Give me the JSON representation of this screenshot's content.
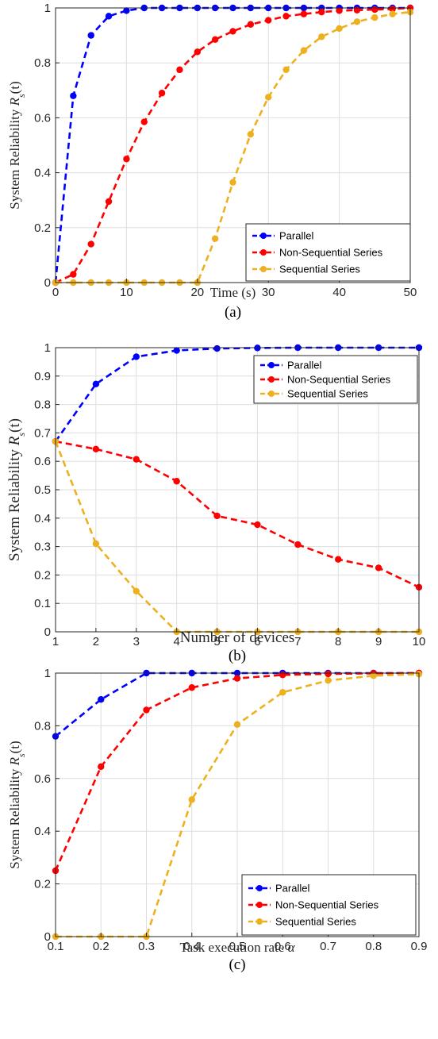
{
  "chart_data": [
    {
      "type": "line",
      "caption": "(a)",
      "xlabel": "Time (s)",
      "ylabel_text": "System Reliability ",
      "ylabel_symbol": "R",
      "ylabel_sub": "s",
      "ylabel_suffix": "(t)",
      "xlim": [
        0,
        50
      ],
      "ylim": [
        0,
        1
      ],
      "xticks": [
        0,
        10,
        20,
        30,
        40,
        50
      ],
      "yticks": [
        0,
        0.2,
        0.4,
        0.6,
        0.8,
        1
      ],
      "ytick_labels": [
        "0",
        "0.2",
        "0.4",
        "0.6",
        "0.8",
        "1"
      ],
      "grid": true,
      "legend_position": "bottom-right",
      "series": [
        {
          "name": "Parallel",
          "color": "#0000ff",
          "x": [
            0,
            2.5,
            5,
            7.5,
            10,
            12.5,
            15,
            17.5,
            20,
            22.5,
            25,
            27.5,
            30,
            32.5,
            35,
            37.5,
            40,
            42.5,
            45,
            47.5,
            50
          ],
          "y": [
            0,
            0.68,
            0.9,
            0.97,
            0.99,
            1,
            1,
            1,
            1,
            1,
            1,
            1,
            1,
            1,
            1,
            1,
            1,
            1,
            1,
            1,
            1
          ]
        },
        {
          "name": "Non-Sequential Series",
          "color": "#ff0000",
          "x": [
            0,
            2.5,
            5,
            7.5,
            10,
            12.5,
            15,
            17.5,
            20,
            22.5,
            25,
            27.5,
            30,
            32.5,
            35,
            37.5,
            40,
            42.5,
            45,
            47.5,
            50
          ],
          "y": [
            0,
            0.03,
            0.14,
            0.295,
            0.45,
            0.585,
            0.69,
            0.775,
            0.84,
            0.885,
            0.915,
            0.94,
            0.955,
            0.97,
            0.978,
            0.985,
            0.99,
            0.992,
            0.994,
            0.996,
            1
          ]
        },
        {
          "name": "Sequential Series",
          "color": "#edb120",
          "x": [
            0,
            2.5,
            5,
            7.5,
            10,
            12.5,
            15,
            17.5,
            20,
            22.5,
            25,
            27.5,
            30,
            32.5,
            35,
            37.5,
            40,
            42.5,
            45,
            47.5,
            50
          ],
          "y": [
            0,
            0,
            0,
            0,
            0,
            0,
            0,
            0,
            0,
            0.16,
            0.365,
            0.54,
            0.675,
            0.775,
            0.845,
            0.895,
            0.925,
            0.95,
            0.965,
            0.978,
            0.985
          ]
        }
      ]
    },
    {
      "type": "line",
      "caption": "(b)",
      "xlabel": "Number of devices",
      "ylabel_text": "System Reliability ",
      "ylabel_symbol": "R",
      "ylabel_sub": "s",
      "ylabel_suffix": "(t)",
      "xlim": [
        1,
        10
      ],
      "ylim": [
        0,
        1
      ],
      "xticks": [
        1,
        2,
        3,
        4,
        5,
        6,
        7,
        8,
        9,
        10
      ],
      "yticks": [
        0,
        0.1,
        0.2,
        0.3,
        0.4,
        0.5,
        0.6,
        0.7,
        0.8,
        0.9,
        1
      ],
      "ytick_labels": [
        "0",
        "0.1",
        "0.2",
        "0.3",
        "0.4",
        "0.5",
        "0.6",
        "0.7",
        "0.8",
        "0.9",
        "1"
      ],
      "grid": true,
      "legend_position": "top-right",
      "series": [
        {
          "name": "Parallel",
          "color": "#0000ff",
          "x": [
            1,
            2,
            3,
            4,
            5,
            6,
            7,
            8,
            9,
            10
          ],
          "y": [
            0.67,
            0.872,
            0.968,
            0.99,
            0.997,
            0.999,
            1,
            1,
            1,
            1
          ]
        },
        {
          "name": "Non-Sequential Series",
          "color": "#ff0000",
          "x": [
            1,
            2,
            3,
            4,
            5,
            6,
            7,
            8,
            9,
            10
          ],
          "y": [
            0.67,
            0.643,
            0.607,
            0.53,
            0.408,
            0.377,
            0.307,
            0.255,
            0.225,
            0.157
          ]
        },
        {
          "name": "Sequential Series",
          "color": "#edb120",
          "x": [
            1,
            2,
            3,
            4,
            5,
            6,
            7,
            8,
            9,
            10
          ],
          "y": [
            0.67,
            0.31,
            0.143,
            0,
            0,
            0,
            0,
            0,
            0,
            0
          ]
        }
      ]
    },
    {
      "type": "line",
      "caption": "(c)",
      "xlabel_text": "Task execution rate ",
      "xlabel_symbol": "α",
      "ylabel_text": "System Reliability ",
      "ylabel_symbol": "R",
      "ylabel_sub": "s",
      "ylabel_suffix": "(t)",
      "xlim": [
        0.1,
        0.9
      ],
      "ylim": [
        0,
        1
      ],
      "xticks": [
        0.1,
        0.2,
        0.3,
        0.4,
        0.5,
        0.6,
        0.7,
        0.8,
        0.9
      ],
      "xtick_labels": [
        "0.1",
        "0.2",
        "0.3",
        "0.4",
        "0.5",
        "0.6",
        "0.7",
        "0.8",
        "0.9"
      ],
      "yticks": [
        0,
        0.2,
        0.4,
        0.6,
        0.8,
        1
      ],
      "ytick_labels": [
        "0",
        "0.2",
        "0.4",
        "0.6",
        "0.8",
        "1"
      ],
      "grid": true,
      "legend_position": "bottom-right",
      "series": [
        {
          "name": "Parallel",
          "color": "#0000ff",
          "x": [
            0.1,
            0.2,
            0.3,
            0.4,
            0.5,
            0.6,
            0.7,
            0.8,
            0.9
          ],
          "y": [
            0.76,
            0.9,
            1,
            1,
            1,
            1,
            1,
            1,
            1
          ]
        },
        {
          "name": "Non-Sequential Series",
          "color": "#ff0000",
          "x": [
            0.1,
            0.2,
            0.3,
            0.4,
            0.5,
            0.6,
            0.7,
            0.8,
            0.9
          ],
          "y": [
            0.25,
            0.645,
            0.86,
            0.945,
            0.98,
            0.993,
            0.997,
            0.999,
            1
          ]
        },
        {
          "name": "Sequential Series",
          "color": "#edb120",
          "x": [
            0.1,
            0.2,
            0.3,
            0.4,
            0.5,
            0.6,
            0.7,
            0.8,
            0.9
          ],
          "y": [
            0,
            0,
            0,
            0.52,
            0.805,
            0.927,
            0.972,
            0.99,
            0.996
          ]
        }
      ]
    }
  ]
}
